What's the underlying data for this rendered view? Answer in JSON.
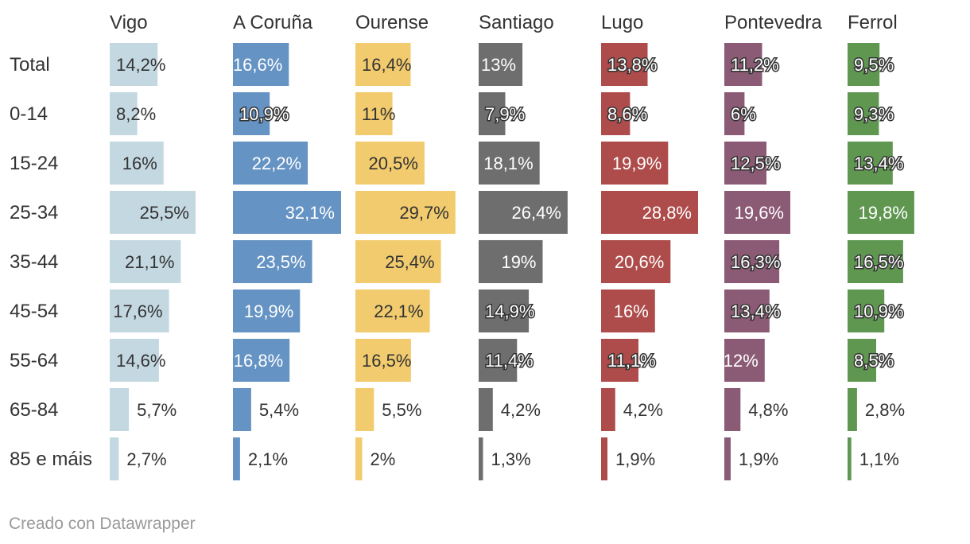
{
  "chart_data": {
    "type": "bar",
    "orientation": "horizontal",
    "layout": "small-multiples",
    "categories": [
      "Total",
      "0-14",
      "15-24",
      "25-34",
      "35-44",
      "45-54",
      "55-64",
      "65-84",
      "85 e máis"
    ],
    "series": [
      {
        "name": "Vigo",
        "color": "#c4d8e2",
        "labels": [
          "14,2%",
          "8,2%",
          "16%",
          "25,5%",
          "21,1%",
          "17,6%",
          "14,6%",
          "5,7%",
          "2,7%"
        ],
        "values": [
          14.2,
          8.2,
          16,
          25.5,
          21.1,
          17.6,
          14.6,
          5.7,
          2.7
        ]
      },
      {
        "name": "A Coruña",
        "color": "#6593c3",
        "labels": [
          "16,6%",
          "10,9%",
          "22,2%",
          "32,1%",
          "23,5%",
          "19,9%",
          "16,8%",
          "5,4%",
          "2,1%"
        ],
        "values": [
          16.6,
          10.9,
          22.2,
          32.1,
          23.5,
          19.9,
          16.8,
          5.4,
          2.1
        ]
      },
      {
        "name": "Ourense",
        "color": "#f2cb6e",
        "labels": [
          "16,4%",
          "11%",
          "20,5%",
          "29,7%",
          "25,4%",
          "22,1%",
          "16,5%",
          "5,5%",
          "2%"
        ],
        "values": [
          16.4,
          11,
          20.5,
          29.7,
          25.4,
          22.1,
          16.5,
          5.5,
          2
        ]
      },
      {
        "name": "Santiago",
        "color": "#6e6e6e",
        "labels": [
          "13%",
          "7,9%",
          "18,1%",
          "26,4%",
          "19%",
          "14,9%",
          "11,4%",
          "4,2%",
          "1,3%"
        ],
        "values": [
          13,
          7.9,
          18.1,
          26.4,
          19,
          14.9,
          11.4,
          4.2,
          1.3
        ]
      },
      {
        "name": "Lugo",
        "color": "#ad4c4a",
        "labels": [
          "13,8%",
          "8,6%",
          "19,9%",
          "28,8%",
          "20,6%",
          "16%",
          "11,1%",
          "4,2%",
          "1,9%"
        ],
        "values": [
          13.8,
          8.6,
          19.9,
          28.8,
          20.6,
          16,
          11.1,
          4.2,
          1.9
        ]
      },
      {
        "name": "Pontevedra",
        "color": "#8b5a74",
        "labels": [
          "11,2%",
          "6%",
          "12,5%",
          "19,6%",
          "16,3%",
          "13,4%",
          "12%",
          "4,8%",
          "1,9%"
        ],
        "values": [
          11.2,
          6,
          12.5,
          19.6,
          16.3,
          13.4,
          12,
          4.8,
          1.9
        ]
      },
      {
        "name": "Ferrol",
        "color": "#5f9751",
        "labels": [
          "9,5%",
          "9,3%",
          "13,4%",
          "19,8%",
          "16,5%",
          "10,9%",
          "8,5%",
          "2,8%",
          "1,1%"
        ],
        "values": [
          9.5,
          9.3,
          13.4,
          19.8,
          16.5,
          10.9,
          8.5,
          2.8,
          1.1
        ]
      }
    ],
    "xlim": [
      0,
      32.1
    ],
    "grid": false,
    "legend": "none"
  },
  "footer": {
    "credit": "Creado con Datawrapper"
  }
}
